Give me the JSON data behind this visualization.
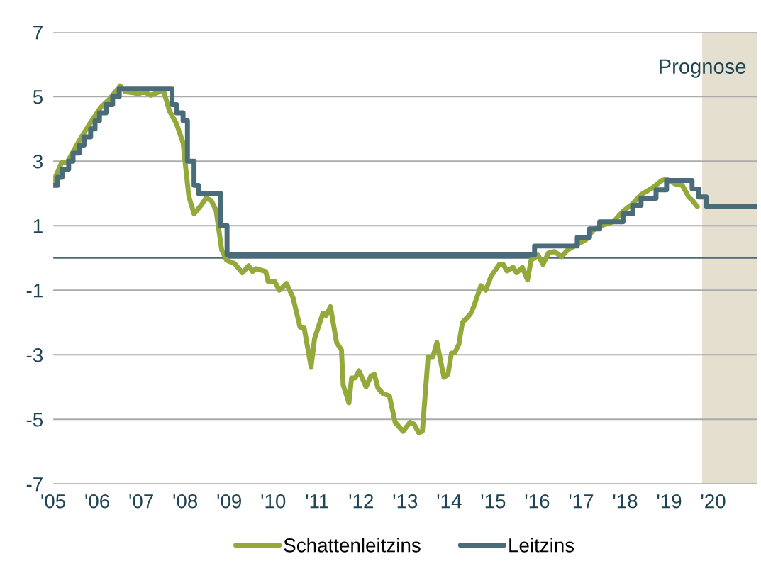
{
  "chart_data": {
    "type": "line",
    "xlim": [
      2005,
      2021
    ],
    "xticks": [
      {
        "value": 2005,
        "label": "'05"
      },
      {
        "value": 2006,
        "label": "'06"
      },
      {
        "value": 2007,
        "label": "'07"
      },
      {
        "value": 2008,
        "label": "'08"
      },
      {
        "value": 2009,
        "label": "'09"
      },
      {
        "value": 2010,
        "label": "'10"
      },
      {
        "value": 2011,
        "label": "'11"
      },
      {
        "value": 2012,
        "label": "'12"
      },
      {
        "value": 2013,
        "label": "'13"
      },
      {
        "value": 2014,
        "label": "'14"
      },
      {
        "value": 2015,
        "label": "'15"
      },
      {
        "value": 2016,
        "label": "'16"
      },
      {
        "value": 2017,
        "label": "'17"
      },
      {
        "value": 2018,
        "label": "'18"
      },
      {
        "value": 2019,
        "label": "'19"
      },
      {
        "value": 2020,
        "label": "'20"
      }
    ],
    "ylim": [
      -7,
      7
    ],
    "yticks": [
      -7,
      -5,
      -3,
      -1,
      1,
      3,
      5,
      7
    ],
    "grid": "y",
    "legend": "bottom",
    "line_style": "solid",
    "ref_lines": [
      {
        "axis": "y",
        "value": 0,
        "color": "#4a6b78"
      }
    ],
    "bands": [
      {
        "axis": "x",
        "from": 2019.75,
        "to": 2021,
        "label": "Prognose",
        "color": "#e5dfd0"
      }
    ],
    "series": [
      {
        "name": "Schattenleitzins",
        "color": "#93a93a",
        "x": [
          2005.0,
          2005.19,
          2005.31,
          2005.61,
          2005.81,
          2006.08,
          2006.28,
          2006.52,
          2006.64,
          2006.95,
          2007.06,
          2007.22,
          2007.42,
          2007.5,
          2007.64,
          2007.8,
          2007.95,
          2008.08,
          2008.2,
          2008.36,
          2008.47,
          2008.59,
          2008.7,
          2008.83,
          2008.94,
          2009.12,
          2009.3,
          2009.44,
          2009.53,
          2009.61,
          2009.83,
          2009.88,
          2010.03,
          2010.14,
          2010.3,
          2010.45,
          2010.61,
          2010.7,
          2010.86,
          2010.94,
          2011.13,
          2011.2,
          2011.3,
          2011.44,
          2011.55,
          2011.59,
          2011.72,
          2011.78,
          2011.86,
          2011.95,
          2012.11,
          2012.22,
          2012.3,
          2012.38,
          2012.5,
          2012.64,
          2012.77,
          2012.95,
          2013.11,
          2013.2,
          2013.31,
          2013.39,
          2013.52,
          2013.63,
          2013.72,
          2013.88,
          2013.97,
          2014.05,
          2014.13,
          2014.22,
          2014.3,
          2014.48,
          2014.56,
          2014.72,
          2014.83,
          2014.95,
          2015.14,
          2015.23,
          2015.31,
          2015.45,
          2015.53,
          2015.66,
          2015.78,
          2015.86,
          2016.02,
          2016.13,
          2016.25,
          2016.39,
          2016.55,
          2016.7,
          2016.91,
          2017.11,
          2017.27,
          2017.48,
          2017.73,
          2017.95,
          2018.16,
          2018.36,
          2018.63,
          2018.83,
          2018.94,
          2019.14,
          2019.3,
          2019.44,
          2019.53,
          2019.64
        ],
        "values": [
          2.36,
          2.95,
          2.95,
          3.68,
          4.12,
          4.67,
          4.93,
          5.33,
          5.15,
          5.09,
          5.15,
          5.04,
          5.15,
          5.22,
          4.56,
          4.16,
          3.57,
          1.92,
          1.37,
          1.63,
          1.85,
          1.78,
          1.48,
          0.24,
          -0.07,
          -0.17,
          -0.46,
          -0.24,
          -0.42,
          -0.33,
          -0.42,
          -0.72,
          -0.72,
          -1.0,
          -0.79,
          -1.23,
          -2.15,
          -2.15,
          -3.37,
          -2.49,
          -1.71,
          -1.78,
          -1.51,
          -2.62,
          -2.85,
          -3.94,
          -4.49,
          -3.72,
          -3.72,
          -3.5,
          -3.99,
          -3.66,
          -3.61,
          -4.03,
          -4.21,
          -4.27,
          -5.09,
          -5.37,
          -5.09,
          -5.15,
          -5.42,
          -5.37,
          -3.06,
          -3.06,
          -2.62,
          -3.7,
          -3.61,
          -2.95,
          -2.93,
          -2.67,
          -2.0,
          -1.74,
          -1.5,
          -0.86,
          -1.0,
          -0.57,
          -0.2,
          -0.2,
          -0.4,
          -0.29,
          -0.46,
          -0.29,
          -0.68,
          -0.07,
          0.09,
          -0.2,
          0.15,
          0.2,
          0.04,
          0.26,
          0.42,
          0.57,
          0.86,
          1.01,
          1.12,
          1.45,
          1.67,
          1.96,
          2.18,
          2.4,
          2.44,
          2.29,
          2.25,
          1.89,
          1.78,
          1.59
        ]
      },
      {
        "name": "Leitzins",
        "color": "#4a6b78",
        "type": "step",
        "x": [
          2005.0,
          2005.1,
          2005.2,
          2005.35,
          2005.45,
          2005.6,
          2005.7,
          2005.85,
          2005.95,
          2006.05,
          2006.2,
          2006.35,
          2006.5,
          2007.7,
          2007.8,
          2007.95,
          2008.05,
          2008.2,
          2008.3,
          2008.8,
          2008.95,
          2015.94,
          2016.91,
          2017.19,
          2017.42,
          2017.95,
          2018.17,
          2018.36,
          2018.7,
          2018.94,
          2019.52,
          2019.67,
          2019.84,
          2021.0
        ],
        "values": [
          2.25,
          2.5,
          2.75,
          3.0,
          3.25,
          3.5,
          3.75,
          4.0,
          4.25,
          4.5,
          4.75,
          5.0,
          5.25,
          4.75,
          4.5,
          4.25,
          3.0,
          2.25,
          2.0,
          1.0,
          0.1,
          0.37,
          0.64,
          0.9,
          1.12,
          1.37,
          1.63,
          1.85,
          2.11,
          2.4,
          2.14,
          1.89,
          1.61,
          1.61
        ]
      }
    ]
  }
}
